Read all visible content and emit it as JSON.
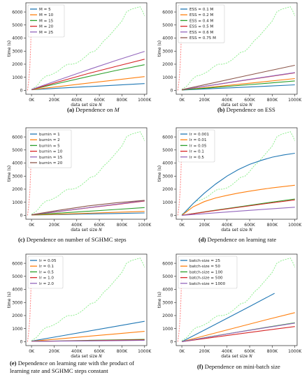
{
  "chart_data": [
    {
      "type": "line",
      "caption": {
        "label": "(a)",
        "text": "Dependence on ",
        "var": "M"
      },
      "xlabel": "data set size N",
      "ylabel": "time (s)",
      "xlim": [
        -50,
        1020
      ],
      "ylim": [
        -300,
        6700
      ],
      "xticks": [
        {
          "v": 0,
          "t": "0K"
        },
        {
          "v": 200,
          "t": "200K"
        },
        {
          "v": 400,
          "t": "400K"
        },
        {
          "v": 600,
          "t": "600K"
        },
        {
          "v": 800,
          "t": "800K"
        },
        {
          "v": 1000,
          "t": "1000K"
        }
      ],
      "yticks": [
        0,
        1000,
        2000,
        3000,
        4000,
        5000,
        6000
      ],
      "series": [
        {
          "name": "M = 5",
          "color": "#1f77b4",
          "x": [
            0,
            250,
            500,
            750,
            1000
          ],
          "y": [
            40,
            170,
            280,
            400,
            520
          ]
        },
        {
          "name": "M = 10",
          "color": "#ff7f0e",
          "x": [
            0,
            250,
            500,
            750,
            1000
          ],
          "y": [
            50,
            300,
            550,
            800,
            1050
          ]
        },
        {
          "name": "M = 15",
          "color": "#2ca02c",
          "x": [
            0,
            250,
            500,
            750,
            1000
          ],
          "y": [
            60,
            560,
            1050,
            1520,
            1960
          ]
        },
        {
          "name": "M = 20",
          "color": "#d62728",
          "x": [
            0,
            250,
            500,
            750,
            1000
          ],
          "y": [
            60,
            680,
            1280,
            1840,
            2380
          ]
        },
        {
          "name": "M = 25",
          "color": "#9467bd",
          "x": [
            0,
            250,
            500,
            750,
            1000
          ],
          "y": [
            70,
            820,
            1570,
            2290,
            2980
          ]
        }
      ]
    },
    {
      "type": "line",
      "caption": {
        "label": "(b)",
        "text": "Dependence on ESS",
        "var": ""
      },
      "xlabel": "data set size N",
      "ylabel": "time (s)",
      "xlim": [
        -50,
        1020
      ],
      "ylim": [
        -300,
        6700
      ],
      "xticks": [
        {
          "v": 0,
          "t": "0K"
        },
        {
          "v": 200,
          "t": "200K"
        },
        {
          "v": 400,
          "t": "400K"
        },
        {
          "v": 600,
          "t": "600K"
        },
        {
          "v": 800,
          "t": "800K"
        },
        {
          "v": 1000,
          "t": "1000K"
        }
      ],
      "yticks": [
        0,
        1000,
        2000,
        3000,
        4000,
        5000,
        6000
      ],
      "series": [
        {
          "name": "ESS = 0.1 M",
          "color": "#1f77b4",
          "x": [
            0,
            250,
            500,
            750,
            1000
          ],
          "y": [
            20,
            120,
            220,
            320,
            420
          ]
        },
        {
          "name": "ESS = 0.2 M",
          "color": "#ff7f0e",
          "x": [
            0,
            250,
            500,
            750,
            1000
          ],
          "y": [
            30,
            240,
            460,
            680,
            900
          ]
        },
        {
          "name": "ESS = 0.4 M",
          "color": "#2ca02c",
          "x": [
            0,
            250,
            500,
            750,
            1000
          ],
          "y": [
            30,
            190,
            370,
            540,
            720
          ]
        },
        {
          "name": "ESS = 0.5 M",
          "color": "#d62728",
          "x": [
            0,
            250,
            500,
            750,
            1000
          ],
          "y": [
            40,
            370,
            700,
            1020,
            1340
          ]
        },
        {
          "name": "ESS = 0.6 M",
          "color": "#9467bd",
          "x": [
            0,
            250,
            500,
            750,
            1000
          ],
          "y": [
            40,
            380,
            710,
            1040,
            1360
          ]
        },
        {
          "name": "ESS = 0.75 M",
          "color": "#8c564b",
          "x": [
            0,
            250,
            500,
            750,
            1000
          ],
          "y": [
            50,
            520,
            990,
            1460,
            1920
          ]
        }
      ]
    },
    {
      "type": "line",
      "caption": {
        "label": "(c)",
        "text": "Dependence on number of SGHMC steps",
        "var": ""
      },
      "xlabel": "data set size N",
      "ylabel": "time (s)",
      "xlim": [
        -50,
        1020
      ],
      "ylim": [
        -300,
        6700
      ],
      "xticks": [
        {
          "v": 0,
          "t": "0K"
        },
        {
          "v": 200,
          "t": "200K"
        },
        {
          "v": 400,
          "t": "400K"
        },
        {
          "v": 600,
          "t": "600K"
        },
        {
          "v": 800,
          "t": "800K"
        },
        {
          "v": 1000,
          "t": "1000K"
        }
      ],
      "yticks": [
        0,
        1000,
        2000,
        3000,
        4000,
        5000,
        6000
      ],
      "series": [
        {
          "name": "burnin = 1",
          "color": "#1f77b4",
          "x": [
            0,
            250,
            500,
            750,
            1000
          ],
          "y": [
            20,
            60,
            100,
            140,
            180
          ]
        },
        {
          "name": "burnin = 2",
          "color": "#ff7f0e",
          "x": [
            0,
            250,
            500,
            750,
            1000
          ],
          "y": [
            20,
            90,
            160,
            230,
            300
          ]
        },
        {
          "name": "burnin = 5",
          "color": "#2ca02c",
          "x": [
            0,
            250,
            500,
            750,
            1000
          ],
          "y": [
            30,
            170,
            310,
            450,
            590
          ]
        },
        {
          "name": "burnin = 10",
          "color": "#d62728",
          "x": [
            0,
            250,
            500,
            750,
            1000
          ],
          "y": [
            30,
            300,
            570,
            830,
            1090
          ]
        },
        {
          "name": "burnin = 15",
          "color": "#9467bd",
          "x": [
            0,
            250,
            500,
            750,
            1000
          ],
          "y": [
            40,
            310,
            580,
            850,
            1120
          ]
        },
        {
          "name": "burnin = 20",
          "color": "#8c564b",
          "x": [
            0,
            250,
            500,
            750,
            1000
          ],
          "y": [
            40,
            400,
            720,
            960,
            1150
          ]
        }
      ]
    },
    {
      "type": "line",
      "caption": {
        "label": "(d)",
        "text": "Dependence on learning rate",
        "var": ""
      },
      "xlabel": "data set size N",
      "ylabel": "time (s)",
      "xlim": [
        -50,
        1020
      ],
      "ylim": [
        -300,
        6700
      ],
      "xticks": [
        {
          "v": 0,
          "t": "0K"
        },
        {
          "v": 200,
          "t": "200K"
        },
        {
          "v": 400,
          "t": "400K"
        },
        {
          "v": 600,
          "t": "600K"
        },
        {
          "v": 800,
          "t": "800K"
        },
        {
          "v": 1000,
          "t": "1000K"
        }
      ],
      "yticks": [
        0,
        1000,
        2000,
        3000,
        4000,
        5000,
        6000
      ],
      "series": [
        {
          "name": "lr = 0.001",
          "color": "#1f77b4",
          "x": [
            0,
            100,
            200,
            300,
            400,
            500,
            600,
            700,
            800,
            900,
            1000
          ],
          "y": [
            0,
            900,
            1700,
            2400,
            3000,
            3500,
            3900,
            4200,
            4450,
            4620,
            4750
          ]
        },
        {
          "name": "lr = 0.01",
          "color": "#ff7f0e",
          "x": [
            0,
            100,
            200,
            300,
            400,
            500,
            600,
            700,
            800,
            900,
            1000
          ],
          "y": [
            0,
            650,
            1050,
            1330,
            1530,
            1700,
            1850,
            1980,
            2100,
            2200,
            2300
          ]
        },
        {
          "name": "lr = 0.05",
          "color": "#2ca02c",
          "x": [
            0,
            250,
            500,
            750,
            1000
          ],
          "y": [
            0,
            330,
            640,
            950,
            1250
          ]
        },
        {
          "name": "lr = 0.1",
          "color": "#d62728",
          "x": [
            0,
            250,
            500,
            750,
            1000
          ],
          "y": [
            0,
            310,
            610,
            900,
            1180
          ]
        },
        {
          "name": "lr = 0.5",
          "color": "#9467bd",
          "x": [
            0,
            250,
            500,
            750,
            1000
          ],
          "y": [
            0,
            160,
            320,
            470,
            620
          ]
        }
      ]
    },
    {
      "type": "line",
      "caption": {
        "label": "(e)",
        "text": "Dependence on learning rate with the product of learning rate and SGHMC steps constant",
        "var": ""
      },
      "xlabel": "data set size N",
      "ylabel": "time (s)",
      "xlim": [
        -50,
        1020
      ],
      "ylim": [
        -300,
        6700
      ],
      "xticks": [
        {
          "v": 0,
          "t": "0K"
        },
        {
          "v": 200,
          "t": "200K"
        },
        {
          "v": 400,
          "t": "400K"
        },
        {
          "v": 600,
          "t": "600K"
        },
        {
          "v": 800,
          "t": "800K"
        },
        {
          "v": 1000,
          "t": "1000K"
        }
      ],
      "yticks": [
        0,
        1000,
        2000,
        3000,
        4000,
        5000,
        6000
      ],
      "series": [
        {
          "name": "lr = 0.05",
          "color": "#1f77b4",
          "x": [
            0,
            250,
            500,
            750,
            1000
          ],
          "y": [
            40,
            420,
            800,
            1180,
            1560
          ]
        },
        {
          "name": "lr = 0.1",
          "color": "#ff7f0e",
          "x": [
            0,
            250,
            500,
            750,
            1000
          ],
          "y": [
            30,
            220,
            410,
            600,
            790
          ]
        },
        {
          "name": "lr = 0.5",
          "color": "#2ca02c",
          "x": [
            0,
            250,
            500,
            750,
            1000
          ],
          "y": [
            20,
            60,
            100,
            140,
            180
          ]
        },
        {
          "name": "lr = 1.0",
          "color": "#d62728",
          "x": [
            0,
            250,
            500,
            750,
            1000
          ],
          "y": [
            20,
            50,
            80,
            110,
            140
          ]
        },
        {
          "name": "lr = 2.0",
          "color": "#9467bd",
          "x": [
            0,
            250,
            500,
            750,
            1000
          ],
          "y": [
            20,
            40,
            60,
            80,
            100
          ]
        }
      ]
    },
    {
      "type": "line",
      "caption": {
        "label": "(f)",
        "text": "Dependence on mini-batch size",
        "var": ""
      },
      "xlabel": "data set size N",
      "ylabel": "time (s)",
      "xlim": [
        -50,
        1020
      ],
      "ylim": [
        -300,
        6700
      ],
      "xticks": [
        {
          "v": 0,
          "t": "0K"
        },
        {
          "v": 200,
          "t": "200K"
        },
        {
          "v": 400,
          "t": "400K"
        },
        {
          "v": 600,
          "t": "600K"
        },
        {
          "v": 800,
          "t": "800K"
        },
        {
          "v": 1000,
          "t": "1000K"
        }
      ],
      "yticks": [
        0,
        1000,
        2000,
        3000,
        4000,
        5000,
        6000
      ],
      "series": [
        {
          "name": "batch-size = 25",
          "color": "#1f77b4",
          "x": [
            0,
            200,
            400,
            600,
            820
          ],
          "y": [
            0,
            890,
            1790,
            2690,
            3700
          ]
        },
        {
          "name": "batch-size = 50",
          "color": "#ff7f0e",
          "x": [
            0,
            250,
            500,
            750,
            1000
          ],
          "y": [
            0,
            560,
            1120,
            1680,
            2220
          ]
        },
        {
          "name": "batch-size = 100",
          "color": "#2ca02c",
          "x": [
            0,
            250,
            500,
            750,
            1000
          ],
          "y": [
            0,
            380,
            740,
            1100,
            1450
          ]
        },
        {
          "name": "batch-size = 500",
          "color": "#d62728",
          "x": [
            0,
            250,
            500,
            750,
            1000
          ],
          "y": [
            0,
            300,
            590,
            880,
            1160
          ]
        },
        {
          "name": "batch-size = 1000",
          "color": "#9467bd",
          "x": [
            0,
            250,
            500,
            750,
            1000
          ],
          "y": [
            0,
            370,
            730,
            1080,
            1420
          ]
        }
      ]
    }
  ],
  "reference_curves": {
    "red_dotted": {
      "color": "#ff7f7f",
      "x": [
        -35,
        -25,
        -15,
        -8,
        -3,
        2
      ],
      "y": [
        0,
        700,
        1800,
        3200,
        4700,
        6000
      ]
    },
    "green_dotted": {
      "color": "#90ee90",
      "x": [
        0,
        40,
        60,
        80,
        100,
        130,
        160,
        200,
        240,
        280,
        320,
        360,
        400,
        440,
        480,
        520,
        560,
        600,
        640,
        680,
        720,
        760,
        800,
        840,
        880,
        920,
        960,
        980,
        1000
      ],
      "y": [
        80,
        300,
        480,
        700,
        900,
        1100,
        1150,
        1300,
        1500,
        1800,
        2000,
        2000,
        2100,
        2300,
        2600,
        2900,
        3000,
        3350,
        3800,
        4100,
        4500,
        4900,
        5300,
        6000,
        6200,
        6300,
        6400,
        6100,
        5700
      ]
    }
  }
}
